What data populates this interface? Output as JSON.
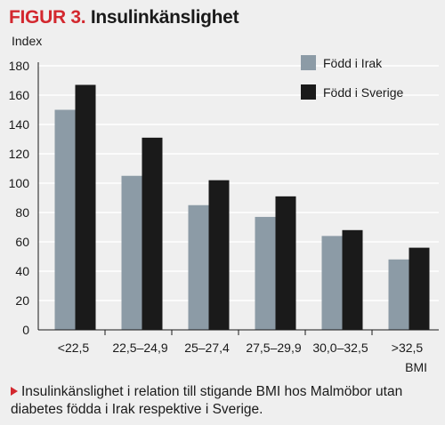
{
  "figure": {
    "number": "FIGUR 3.",
    "title": "Insulinkänslighet",
    "caption": "Insulinkänslighet i relation till stigande BMI hos Malmöbor utan diabetes födda i Irak respektive i Sverige.",
    "accent_color": "#d3282f",
    "caption_marker_icon": "triangle-right-icon"
  },
  "chart_data": {
    "type": "bar",
    "ylabel": "Index",
    "xlabel": "BMI",
    "ylim": [
      0,
      180
    ],
    "yticks": [
      0,
      20,
      40,
      60,
      80,
      100,
      120,
      140,
      160,
      180
    ],
    "grid": true,
    "legend_position": "top-right",
    "categories": [
      "<22,5",
      "22,5–24,9",
      "25–27,4",
      "27,5–29,9",
      "30,0–32,5",
      ">32,5"
    ],
    "series": [
      {
        "name": "Född i Irak",
        "color": "#8c9ba6",
        "values": [
          150,
          105,
          85,
          77,
          64,
          48
        ]
      },
      {
        "name": "Född i Sverige",
        "color": "#1a1a1a",
        "values": [
          167,
          131,
          102,
          91,
          68,
          56
        ]
      }
    ]
  }
}
